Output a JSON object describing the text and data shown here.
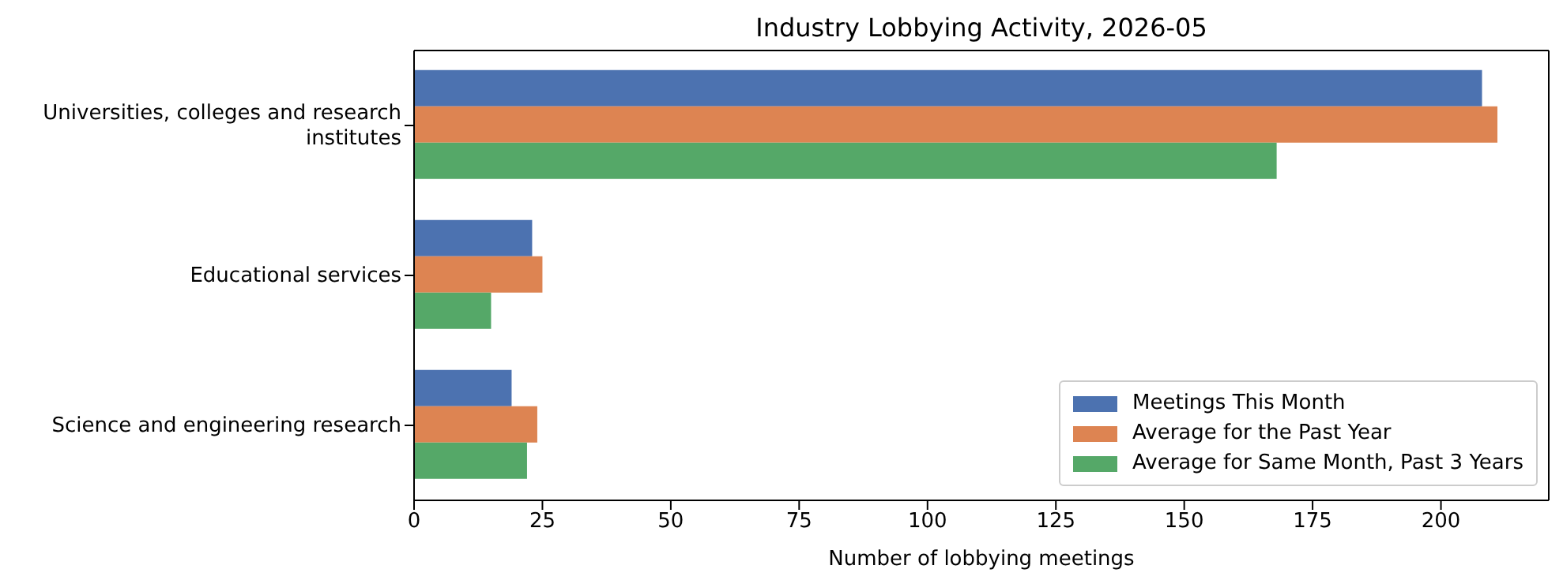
{
  "chart_data": {
    "type": "bar",
    "orientation": "horizontal",
    "title": "Industry Lobbying Activity, 2026-05",
    "xlabel": "Number of lobbying meetings",
    "categories": [
      "Universities, colleges and research institutes",
      "Educational services",
      "Science and engineering research"
    ],
    "series": [
      {
        "name": "Meetings This Month",
        "color": "#4c72b0",
        "values": [
          208,
          23,
          19
        ]
      },
      {
        "name": "Average for the Past Year",
        "color": "#dd8452",
        "values": [
          211,
          25,
          24
        ]
      },
      {
        "name": "Average for Same Month, Past 3 Years",
        "color": "#55a868",
        "values": [
          168,
          15,
          22
        ]
      }
    ],
    "xlim": [
      0,
      221
    ],
    "xticks": [
      0,
      25,
      50,
      75,
      100,
      125,
      150,
      175,
      200
    ],
    "legend": "bottom right",
    "grid": false
  }
}
